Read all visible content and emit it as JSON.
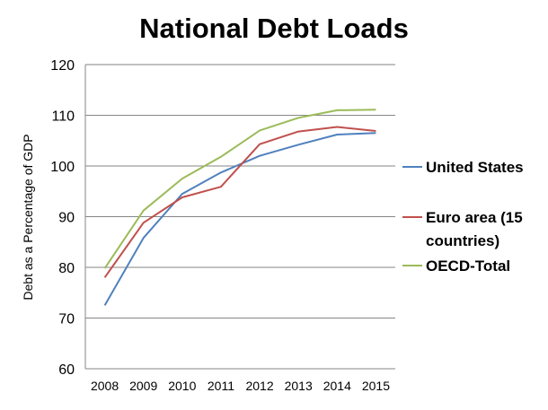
{
  "chart_data": {
    "type": "line",
    "title": "National Debt Loads",
    "xlabel": "",
    "ylabel": "Debt as a Percentage of GDP",
    "x": [
      "2008",
      "2009",
      "2010",
      "2011",
      "2012",
      "2013",
      "2014",
      "2015"
    ],
    "ylim": [
      60,
      120
    ],
    "yticks": [
      60,
      70,
      80,
      90,
      100,
      110,
      120
    ],
    "grid": "horizontal",
    "legend_position": "right",
    "series": [
      {
        "name": "United States",
        "color": "#4f81bd",
        "values": [
          72.5,
          85.8,
          94.5,
          98.7,
          102.0,
          104.2,
          106.2,
          106.5
        ]
      },
      {
        "name": "Euro area (15 countries)",
        "legend_lines": [
          "Euro area (15",
          "countries)"
        ],
        "color": "#c0504d",
        "values": [
          78.0,
          88.8,
          93.8,
          95.9,
          104.3,
          106.8,
          107.7,
          106.9
        ]
      },
      {
        "name": "OECD-Total",
        "color": "#9bbb59",
        "values": [
          79.8,
          91.2,
          97.5,
          101.8,
          107.0,
          109.5,
          111.0,
          111.1
        ]
      }
    ]
  }
}
